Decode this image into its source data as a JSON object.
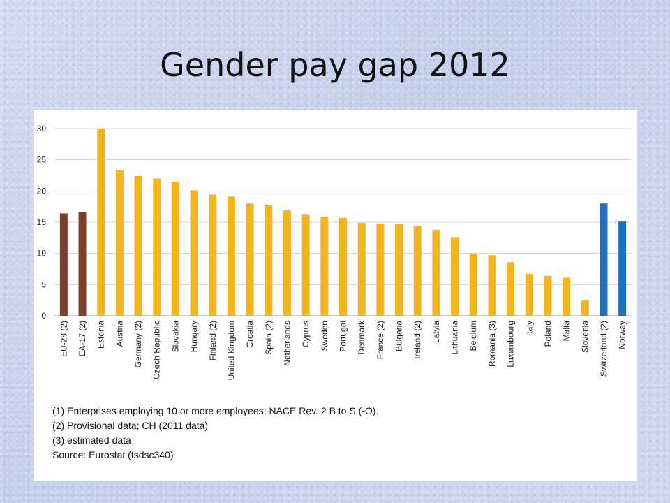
{
  "slide": {
    "title": "Gender pay gap 2012"
  },
  "chart_data": {
    "type": "bar",
    "title": "",
    "xlabel": "",
    "ylabel": "",
    "ylim": [
      0,
      30
    ],
    "yticks": [
      0,
      5,
      10,
      15,
      20,
      25,
      30
    ],
    "grid": true,
    "legend": "none",
    "categories": [
      "EU-28 (2)",
      "EA-17 (2)",
      "Estonia",
      "Austria",
      "Germany (2)",
      "Czech Republic",
      "Slovakia",
      "Hungary",
      "Finland (2)",
      "United Kingdom",
      "Croatia",
      "Spain (2)",
      "Netherlands",
      "Cyprus",
      "Sweden",
      "Portugal",
      "Denmark",
      "France (2)",
      "Bulgaria",
      "Ireland (2)",
      "Latvia",
      "Lithuania",
      "Belgium",
      "Romania (3)",
      "Luxembourg",
      "Italy",
      "Poland",
      "Malta",
      "Slovenia",
      "Switzerland (2)",
      "Norway"
    ],
    "values": [
      16.4,
      16.6,
      30.0,
      23.4,
      22.4,
      22.0,
      21.5,
      20.1,
      19.4,
      19.1,
      18.0,
      17.8,
      16.9,
      16.2,
      15.9,
      15.7,
      14.9,
      14.8,
      14.7,
      14.4,
      13.8,
      12.6,
      10.0,
      9.7,
      8.6,
      6.7,
      6.4,
      6.1,
      2.5,
      18.0,
      15.1
    ],
    "bar_colors": [
      "#7b3f28",
      "#7b3f28",
      "#f5b31e",
      "#f5b31e",
      "#f5b31e",
      "#f5b31e",
      "#f5b31e",
      "#f5b31e",
      "#f5b31e",
      "#f5b31e",
      "#f5b31e",
      "#f5b31e",
      "#f5b31e",
      "#f5b31e",
      "#f5b31e",
      "#f5b31e",
      "#f5b31e",
      "#f5b31e",
      "#f5b31e",
      "#f5b31e",
      "#f5b31e",
      "#f5b31e",
      "#f5b31e",
      "#f5b31e",
      "#f5b31e",
      "#f5b31e",
      "#f5b31e",
      "#f5b31e",
      "#f5b31e",
      "#1f6fbd",
      "#1f6fbd"
    ],
    "footnotes": [
      "(1) Enterprises employing 10 or more employees; NACE Rev. 2 B to S (-O).",
      "(2) Provisional data; CH (2011 data)",
      "(3) estimated data",
      "Source: Eurostat (tsdsc340)"
    ]
  }
}
